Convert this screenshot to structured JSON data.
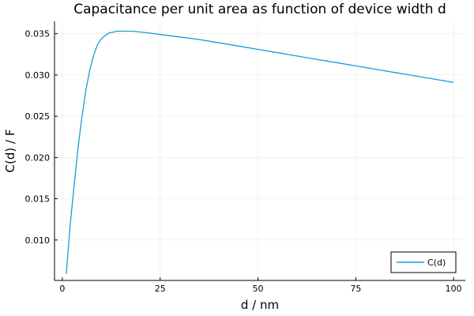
{
  "chart_data": {
    "type": "line",
    "title": "Capacitance per unit area as function of device width d",
    "xlabel": "d / nm",
    "ylabel": "C(d) / F",
    "xlim": [
      -2,
      103
    ],
    "ylim": [
      0.0051,
      0.0365
    ],
    "xticks": [
      0,
      25,
      50,
      75,
      100
    ],
    "xtick_labels": [
      "0",
      "25",
      "50",
      "75",
      "100"
    ],
    "yticks": [
      0.01,
      0.015,
      0.02,
      0.025,
      0.03,
      0.035
    ],
    "ytick_labels": [
      "0.010",
      "0.015",
      "0.020",
      "0.025",
      "0.030",
      "0.035"
    ],
    "grid": true,
    "legend_position": "bottom-right",
    "series": [
      {
        "name": "C(d)",
        "color": "#1a9bd7",
        "x": [
          1,
          2,
          3,
          4,
          5,
          6,
          7,
          8,
          9,
          10,
          11,
          12,
          13,
          14,
          15,
          16,
          17,
          18,
          20,
          22,
          25,
          30,
          35,
          40,
          45,
          50,
          55,
          60,
          65,
          70,
          75,
          80,
          85,
          90,
          95,
          100
        ],
        "y": [
          0.0059,
          0.0118,
          0.0166,
          0.0211,
          0.0249,
          0.0281,
          0.0306,
          0.0324,
          0.0337,
          0.0344,
          0.0348,
          0.0351,
          0.0352,
          0.0353,
          0.0353,
          0.0353,
          0.0353,
          0.0353,
          0.0352,
          0.0351,
          0.0349,
          0.0346,
          0.0343,
          0.0339,
          0.0335,
          0.0331,
          0.0327,
          0.0323,
          0.0319,
          0.0315,
          0.0311,
          0.0307,
          0.0303,
          0.0299,
          0.0295,
          0.0291
        ]
      }
    ]
  }
}
